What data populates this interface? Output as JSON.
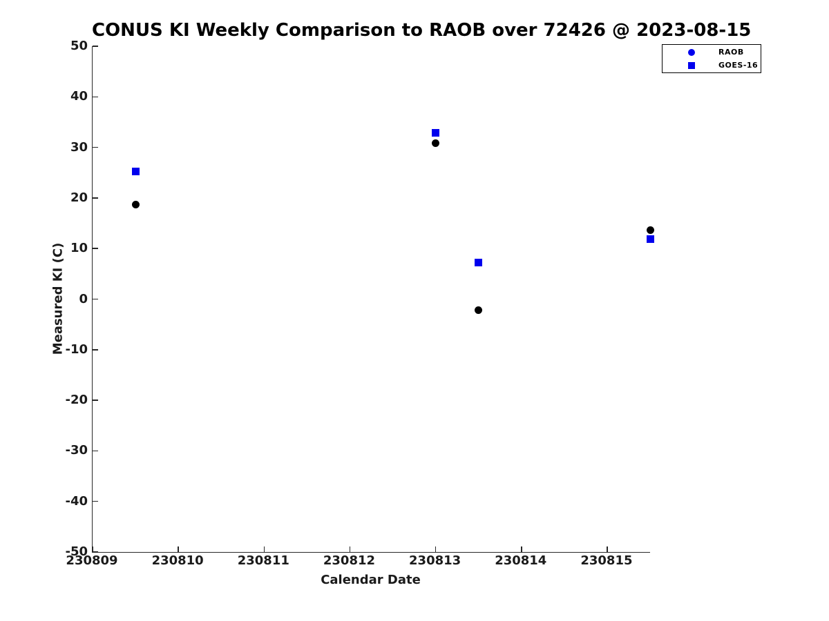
{
  "title": "CONUS KI Weekly Comparison to RAOB over 72426 @ 2023-08-15",
  "colors": {
    "raob_marker": "#000000",
    "goes16_marker": "#0000ee",
    "legend_marker": "#0000ee",
    "axis_line": "#262626",
    "label_text": "#1a1a1a",
    "background": "#ffffff"
  },
  "legend": {
    "items": [
      {
        "label": "RAOB",
        "marker": "circle",
        "color": "#0000ee"
      },
      {
        "label": "GOES-16",
        "marker": "square",
        "color": "#0000ee"
      }
    ]
  },
  "chart_data": {
    "type": "scatter",
    "title": "CONUS KI Weekly Comparison to RAOB over 72426 @ 2023-08-15",
    "xlabel": "Calendar Date",
    "ylabel": "Measured KI (C)",
    "xlim": [
      230809,
      230815.5
    ],
    "ylim": [
      -50,
      50
    ],
    "xticks": [
      230809,
      230810,
      230811,
      230812,
      230813,
      230814,
      230815
    ],
    "yticks": [
      -50,
      -40,
      -30,
      -20,
      -10,
      0,
      10,
      20,
      30,
      40,
      50
    ],
    "grid": false,
    "legend_position": "top-right-outside",
    "series": [
      {
        "name": "RAOB",
        "marker": "circle",
        "color": "#000000",
        "x": [
          230809.5,
          230813.0,
          230813.5,
          230815.5
        ],
        "y": [
          18.7,
          30.9,
          -2.2,
          13.6
        ]
      },
      {
        "name": "GOES-16",
        "marker": "square",
        "color": "#0000ee",
        "x": [
          230809.5,
          230813.0,
          230813.5,
          230815.5
        ],
        "y": [
          25.2,
          32.9,
          7.2,
          11.9
        ]
      }
    ]
  }
}
